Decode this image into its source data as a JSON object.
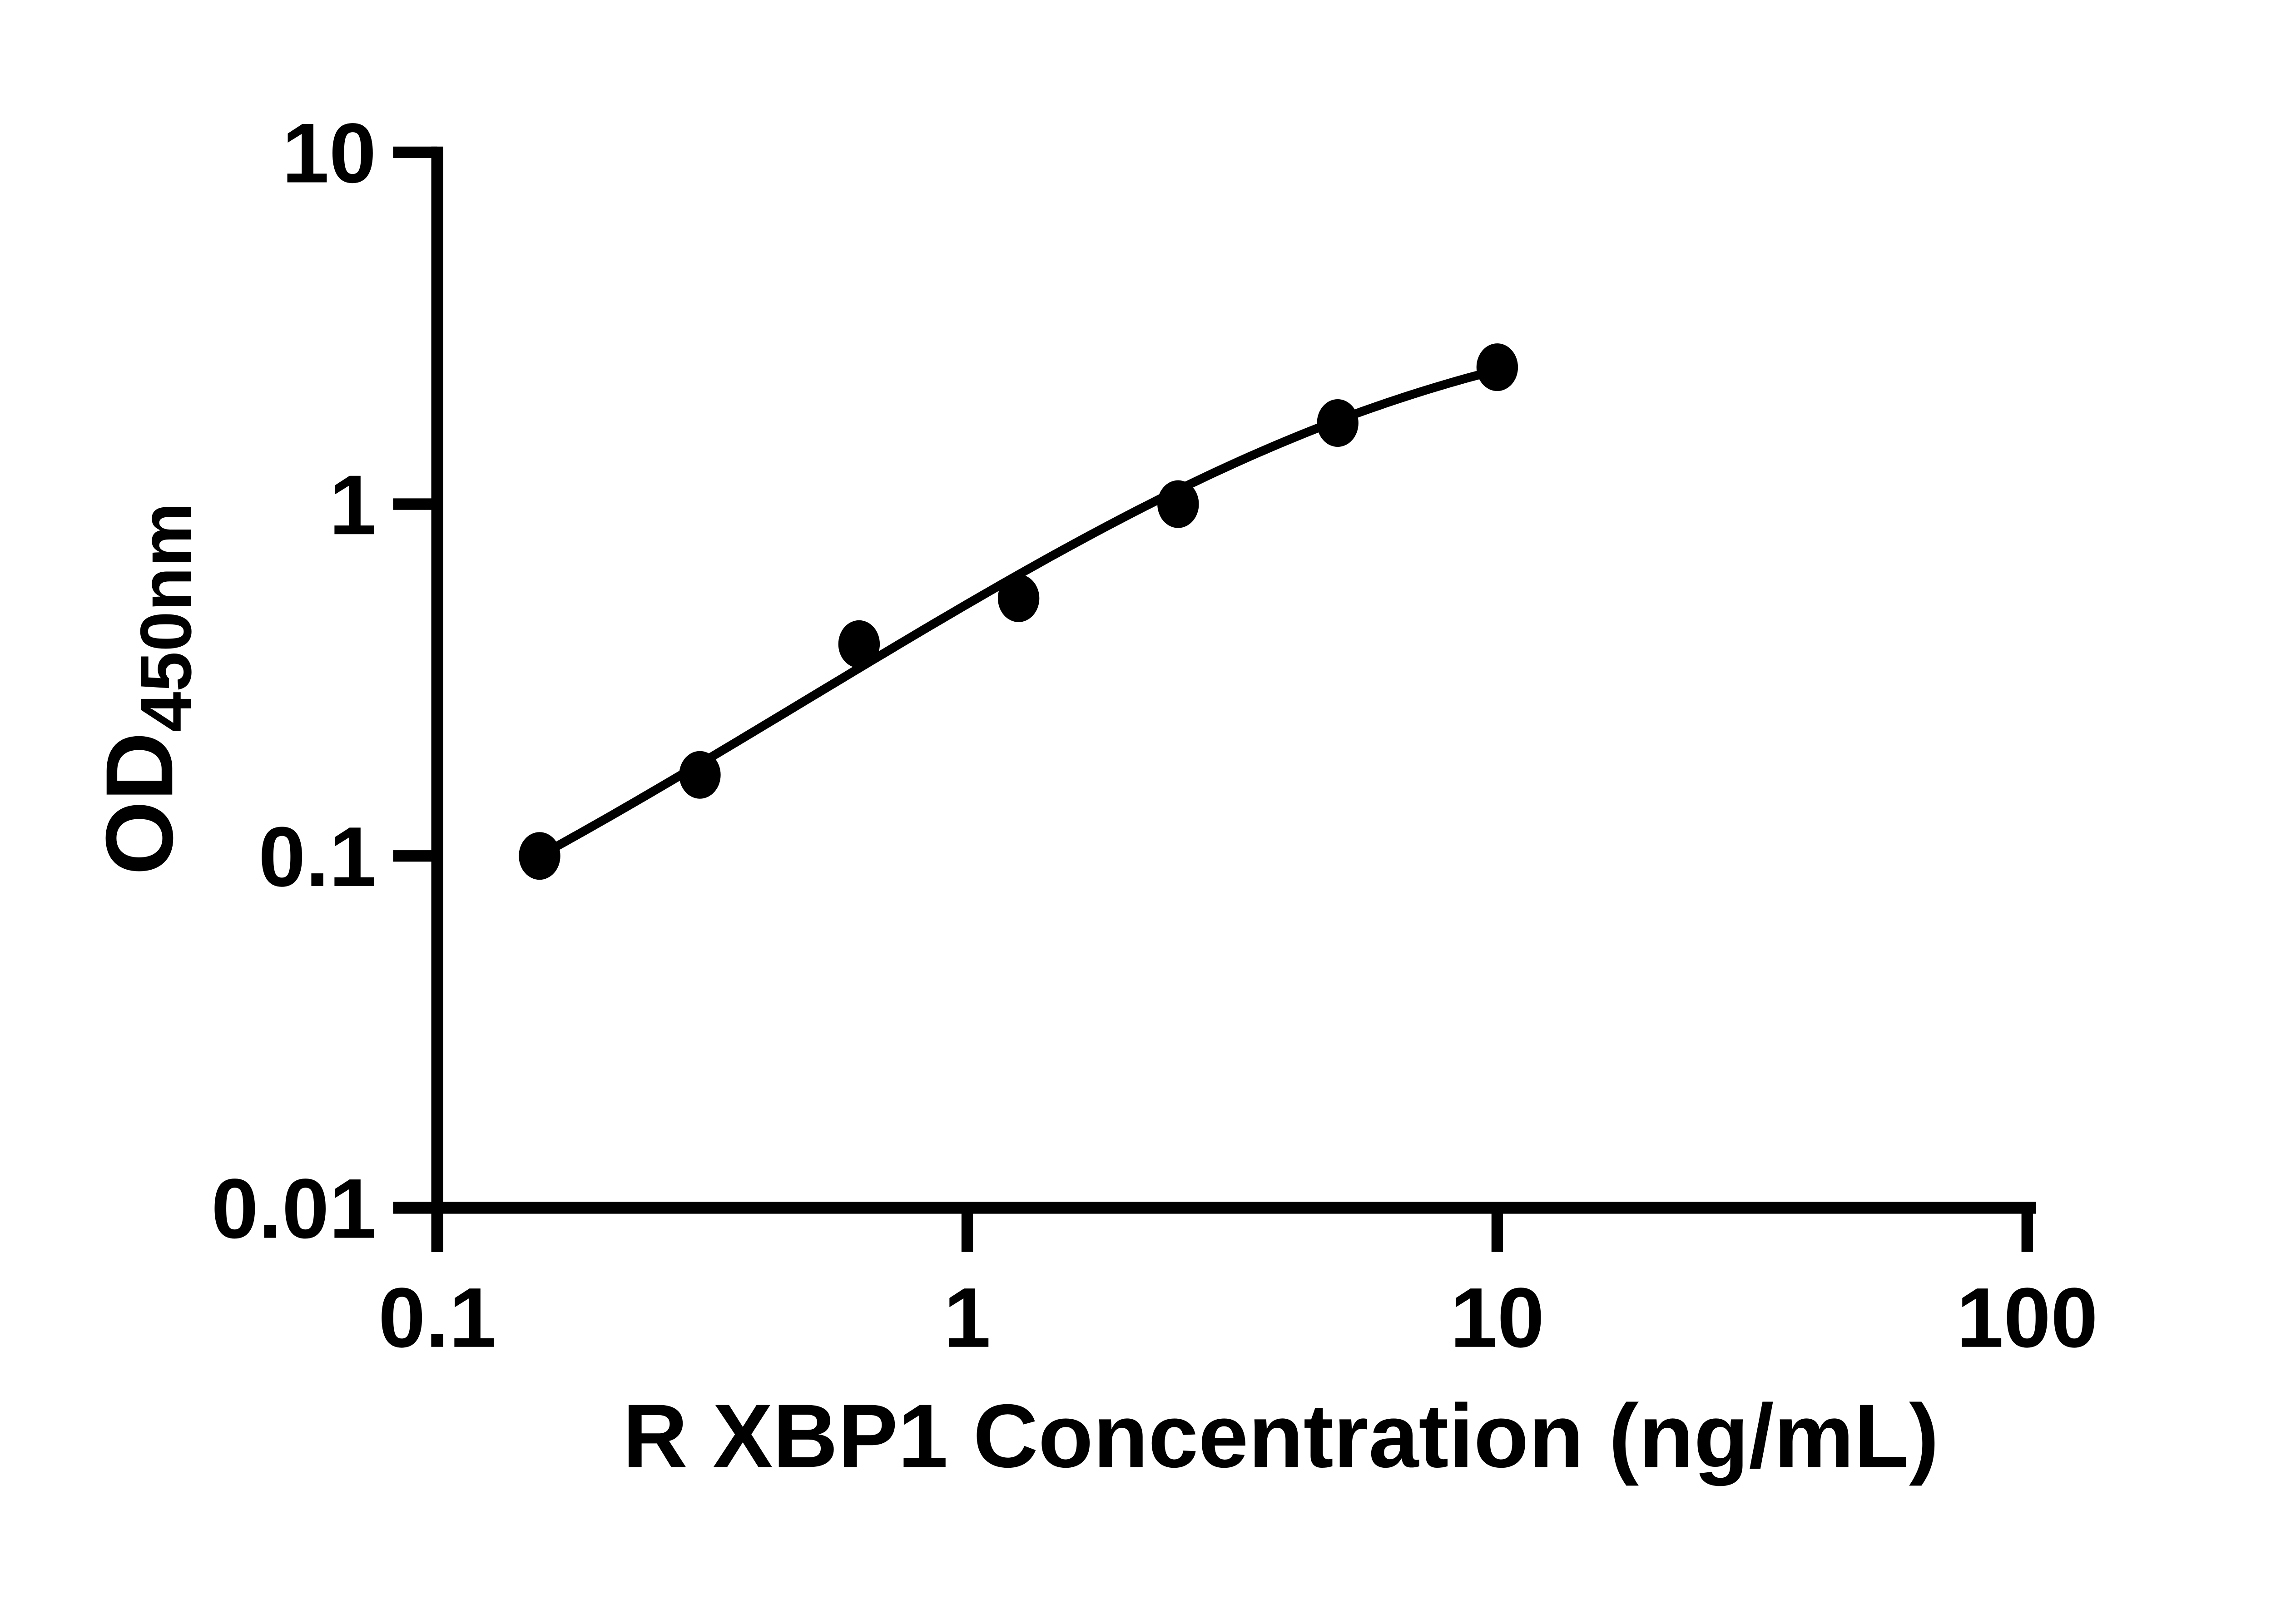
{
  "canvas": {
    "background": "#ffffff",
    "ink_color": "#000000"
  },
  "chart_data": {
    "type": "scatter",
    "title": "",
    "xlabel": "R XBP1 Concentration (ng/mL)",
    "ylabel": {
      "main": "OD",
      "subscript": "450nm"
    },
    "x_scale": "log10",
    "y_scale": "log10",
    "xlim": [
      0.1,
      100
    ],
    "ylim": [
      0.01,
      10
    ],
    "grid": false,
    "legend": false,
    "x_ticks": [
      {
        "value": 0.1,
        "label": "0.1"
      },
      {
        "value": 1,
        "label": "1"
      },
      {
        "value": 10,
        "label": "10"
      },
      {
        "value": 100,
        "label": "100"
      }
    ],
    "y_ticks": [
      {
        "value": 0.01,
        "label": "0.01"
      },
      {
        "value": 0.1,
        "label": "0.1"
      },
      {
        "value": 1,
        "label": "1"
      },
      {
        "value": 10,
        "label": "10"
      }
    ],
    "series": [
      {
        "name": "standard-curve-points",
        "marker": "filled-circle",
        "color": "#000000",
        "points": [
          {
            "x": 0.156,
            "y": 0.1
          },
          {
            "x": 0.313,
            "y": 0.17
          },
          {
            "x": 0.625,
            "y": 0.4
          },
          {
            "x": 1.25,
            "y": 0.54
          },
          {
            "x": 2.5,
            "y": 1.0
          },
          {
            "x": 5,
            "y": 1.7
          },
          {
            "x": 10,
            "y": 2.45
          }
        ]
      }
    ],
    "fit_curve": {
      "model": "4PL",
      "bottom": 0.02,
      "top": 3.8,
      "ec50": 6.0,
      "hill": 1.05,
      "x_start": 0.156,
      "x_end": 10,
      "color": "#000000"
    }
  }
}
